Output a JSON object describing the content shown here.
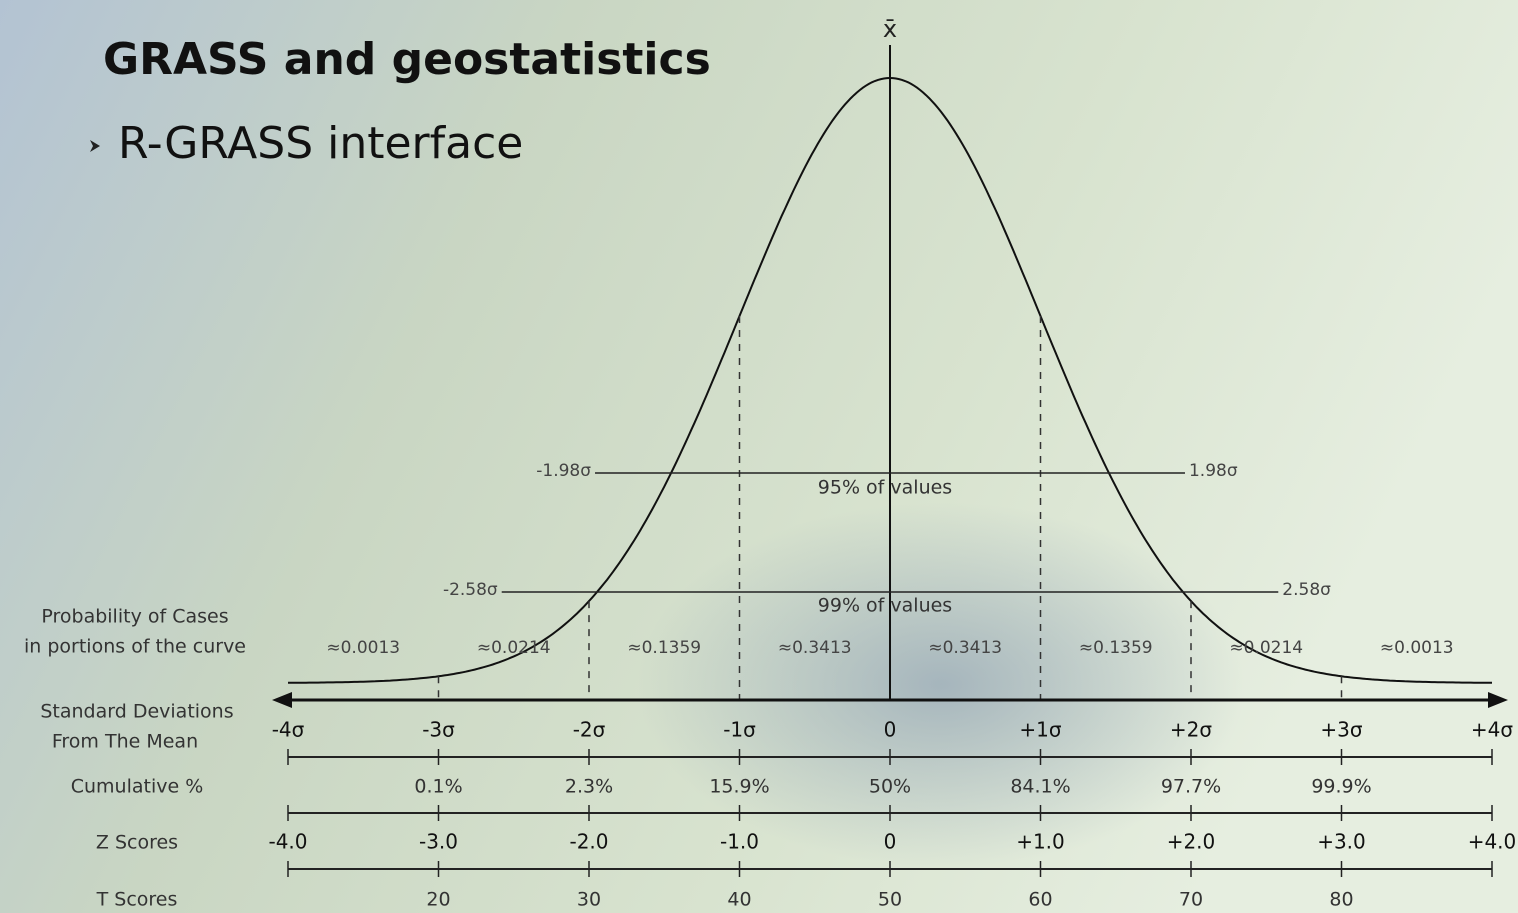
{
  "header": {
    "title": "GRASS and geostatistics",
    "bullet": "R-GRASS interface"
  },
  "diagram": {
    "mean_symbol": "x̄",
    "range_95": {
      "left": "-1.98σ",
      "right": "1.98σ",
      "label": "95% of values"
    },
    "range_99": {
      "left": "-2.58σ",
      "right": "2.58σ",
      "label": "99% of values"
    },
    "probability_row": {
      "label": [
        "Probability of Cases",
        "in portions of the curve"
      ],
      "values": [
        "≈0.0013",
        "≈0.0214",
        "≈0.1359",
        "≈0.3413",
        "≈0.3413",
        "≈0.1359",
        "≈0.0214",
        "≈0.0013"
      ]
    },
    "std_row": {
      "label": [
        "Standard Deviations",
        "From The Mean"
      ],
      "values": [
        "-4σ",
        "-3σ",
        "-2σ",
        "-1σ",
        "0",
        "+1σ",
        "+2σ",
        "+3σ",
        "+4σ"
      ]
    },
    "cumulative_row": {
      "label": "Cumulative %",
      "values": [
        "0.1%",
        "2.3%",
        "15.9%",
        "50%",
        "84.1%",
        "97.7%",
        "99.9%"
      ]
    },
    "z_row": {
      "label": "Z Scores",
      "values": [
        "-4.0",
        "-3.0",
        "-2.0",
        "-1.0",
        "0",
        "+1.0",
        "+2.0",
        "+3.0",
        "+4.0"
      ]
    },
    "t_row": {
      "label": "T Scores",
      "values": [
        "20",
        "30",
        "40",
        "50",
        "60",
        "70",
        "80"
      ]
    }
  }
}
